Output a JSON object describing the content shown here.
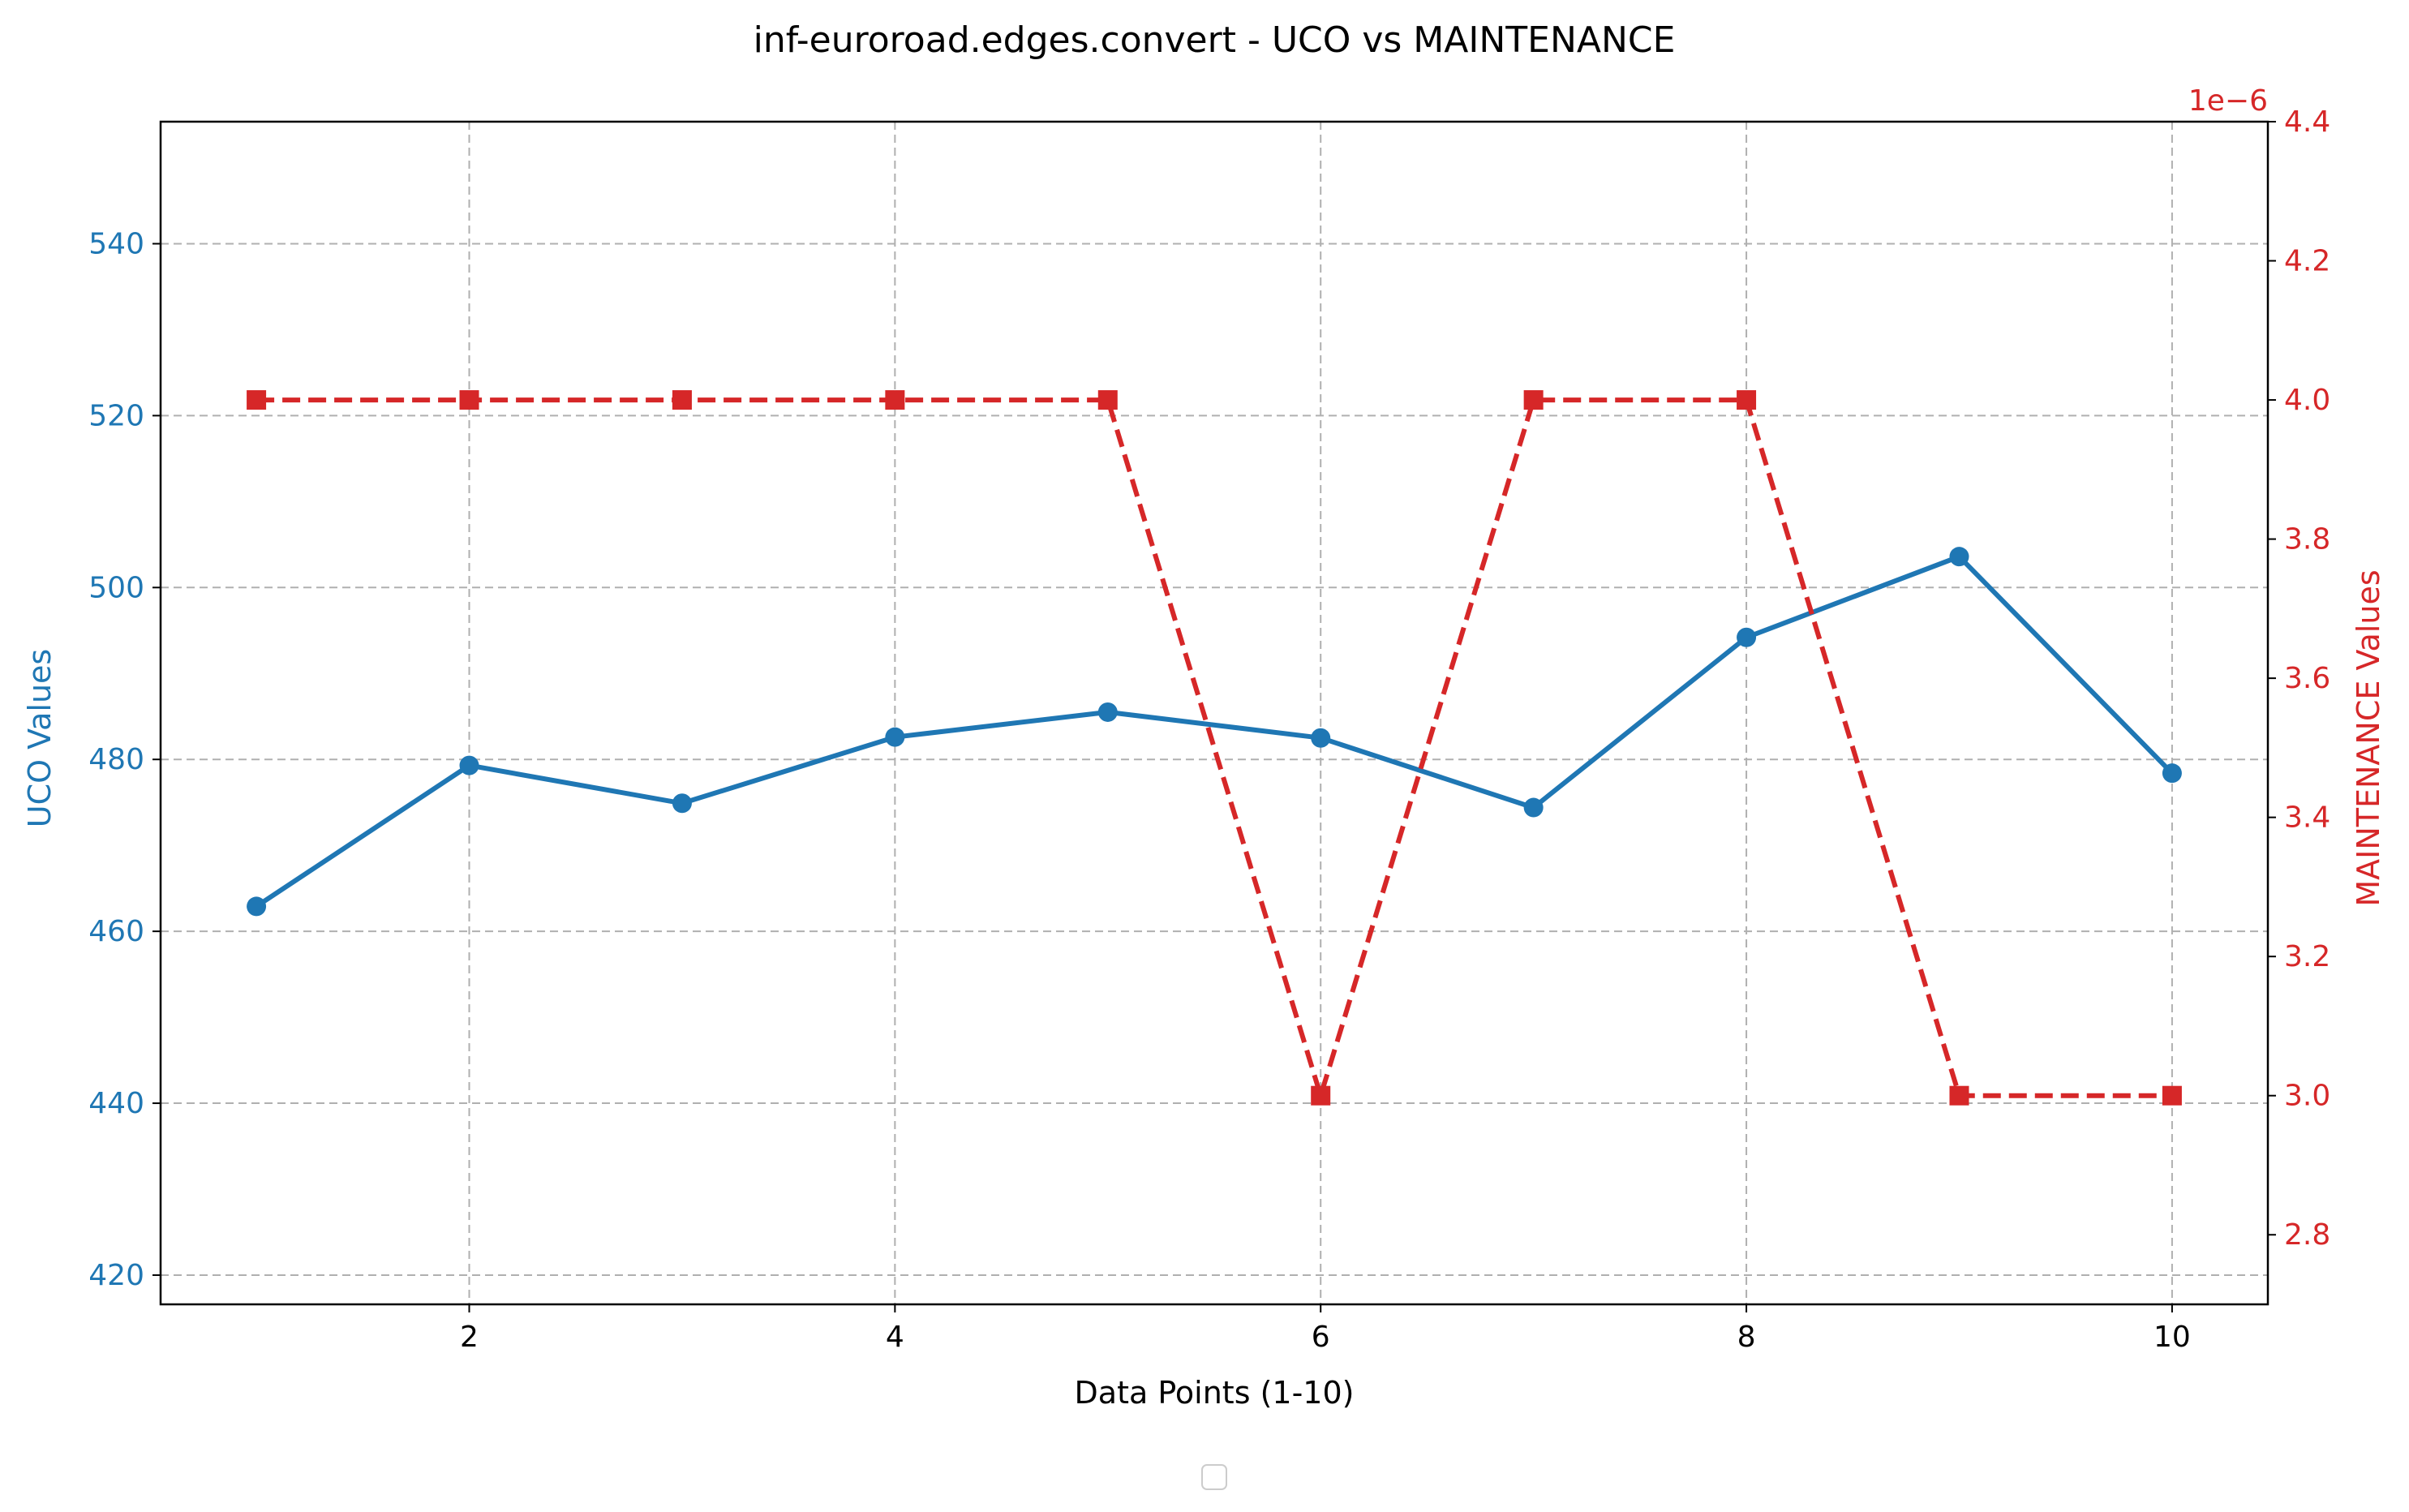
{
  "colors": {
    "uco": "#1f77b4",
    "maintenance": "#d62728",
    "grid": "#b0b0b0",
    "axis": "#000000"
  },
  "chart_data": {
    "type": "line",
    "title": "inf-euroroad.edges.convert - UCO vs MAINTENANCE",
    "xlabel": "Data Points (1-10)",
    "x": [
      1,
      2,
      3,
      4,
      5,
      6,
      7,
      8,
      9,
      10
    ],
    "xlim": [
      0.55,
      10.45
    ],
    "x_ticks": [
      2,
      4,
      6,
      8,
      10
    ],
    "grid": true,
    "legend": {
      "placement": "bottom-center",
      "entries": []
    },
    "left_axis": {
      "label": "UCO Values",
      "ylim": [
        416.6,
        554.2
      ],
      "ticks": [
        420,
        440,
        460,
        480,
        500,
        520,
        540
      ]
    },
    "right_axis": {
      "label": "MAINTENANCE Values",
      "offset_text": "1e−6",
      "scale": 1e-06,
      "ylim": [
        2.7,
        4.4
      ],
      "ticks": [
        2.8,
        3.0,
        3.2,
        3.4,
        3.6,
        3.8,
        4.0,
        4.2,
        4.4
      ],
      "tick_labels": [
        "2.8",
        "3.0",
        "3.2",
        "3.4",
        "3.6",
        "3.8",
        "4.0",
        "4.2",
        "4.4"
      ]
    },
    "series": [
      {
        "axis": "left",
        "values": [
          462.9,
          479.3,
          474.9,
          482.6,
          485.5,
          482.5,
          474.4,
          494.2,
          503.6,
          478.4
        ],
        "line_style": "solid",
        "marker": "circle"
      },
      {
        "axis": "right",
        "values": [
          4e-06,
          4e-06,
          4e-06,
          4e-06,
          4e-06,
          3e-06,
          4e-06,
          4e-06,
          3e-06,
          3e-06
        ],
        "line_style": "dashed",
        "marker": "square"
      }
    ]
  }
}
